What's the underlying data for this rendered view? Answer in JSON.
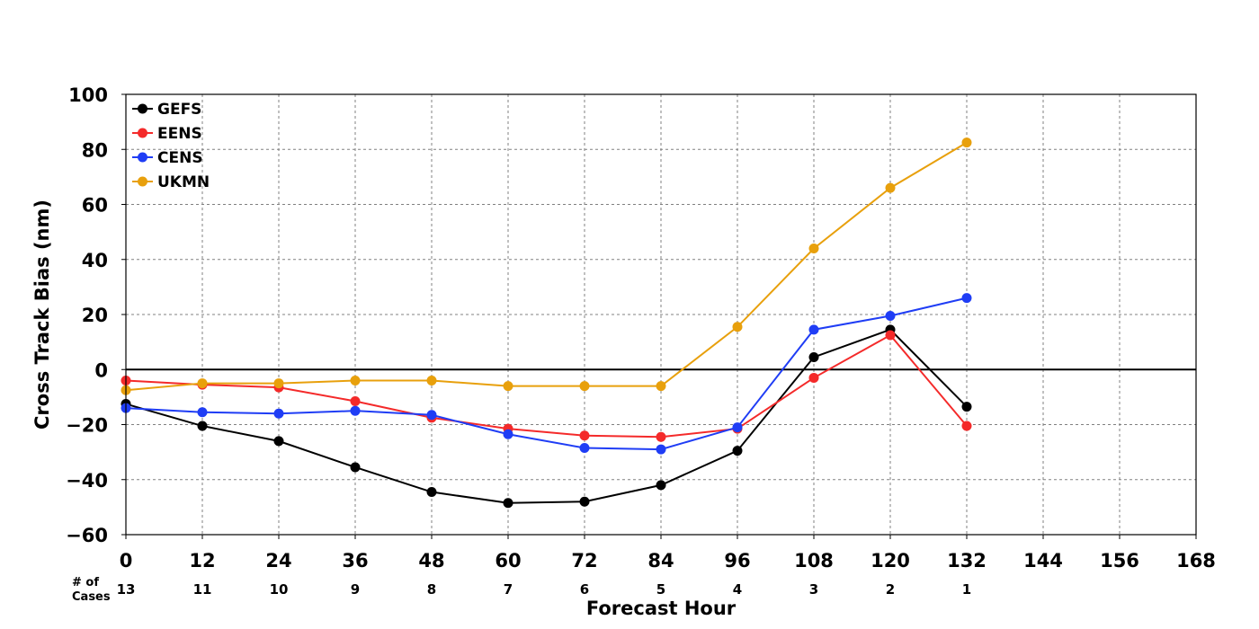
{
  "chart_data": {
    "type": "line",
    "xlabel": "Forecast Hour",
    "ylabel": "Cross Track Bias (nm)",
    "xlim": [
      0,
      168
    ],
    "ylim": [
      -60,
      100
    ],
    "xticks": [
      0,
      12,
      24,
      36,
      48,
      60,
      72,
      84,
      96,
      108,
      120,
      132,
      144,
      156,
      168
    ],
    "yticks": [
      -60,
      -40,
      -20,
      0,
      20,
      40,
      60,
      80,
      100
    ],
    "ytick_labels": [
      "−60",
      "−40",
      "−20",
      "0",
      "20",
      "40",
      "60",
      "80",
      "100"
    ],
    "grid": true,
    "zero_line": true,
    "legend_position": "top-left",
    "x": [
      0,
      12,
      24,
      36,
      48,
      60,
      72,
      84,
      96,
      108,
      120,
      132
    ],
    "series": [
      {
        "name": "GEFS",
        "color": "#000000",
        "values": [
          -12.5,
          -20.5,
          -26,
          -35.5,
          -44.5,
          -48.5,
          -48,
          -42,
          -29.5,
          4.5,
          14.5,
          -13.5
        ]
      },
      {
        "name": "EENS",
        "color": "#f42a2a",
        "values": [
          -4,
          -5.5,
          -6.5,
          -11.5,
          -17.5,
          -21.5,
          -24,
          -24.5,
          -21.5,
          -3,
          12.5,
          -20.5
        ]
      },
      {
        "name": "CENS",
        "color": "#1f3df5",
        "values": [
          -14,
          -15.5,
          -16,
          -15,
          -16.5,
          -23.5,
          -28.5,
          -29,
          -21,
          14.5,
          19.5,
          26
        ]
      },
      {
        "name": "UKMN",
        "color": "#e8a00c",
        "values": [
          -7.5,
          -5,
          -5,
          -4,
          -4,
          -6,
          -6,
          -6,
          15.5,
          44,
          66,
          82.5
        ]
      }
    ],
    "cases_caption_line1": "# of",
    "cases_caption_line2": "Cases",
    "cases": [
      "13",
      "11",
      "10",
      "9",
      "8",
      "7",
      "6",
      "5",
      "4",
      "3",
      "2",
      "1"
    ]
  }
}
